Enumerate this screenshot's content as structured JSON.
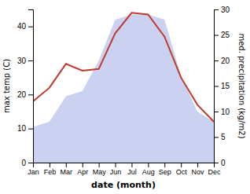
{
  "chart_data": {
    "type": "line",
    "categories": [
      "Jan",
      "Feb",
      "Mar",
      "Apr",
      "May",
      "Jun",
      "Jul",
      "Aug",
      "Sep",
      "Oct",
      "Nov",
      "Dec"
    ],
    "series": [
      {
        "type": "area",
        "axis": "y2",
        "color": "#c5cdf0",
        "values": [
          7.0,
          8.0,
          13.0,
          14.0,
          20.0,
          28.0,
          29.0,
          29.0,
          28.0,
          17.0,
          10.0,
          8.0
        ]
      },
      {
        "type": "line",
        "color": "#c0392b",
        "values": [
          18.0,
          22.0,
          29.0,
          27.0,
          27.5,
          38.0,
          44.0,
          43.5,
          37.0,
          25.0,
          17.0,
          12.0
        ]
      }
    ],
    "xlabel": "date (month)",
    "ylabel": "max temp (C)",
    "y2label": "med. precipitation (kg/m2)",
    "ylim": [
      0,
      45
    ],
    "yticks": [
      0,
      10,
      20,
      30,
      40
    ],
    "y2lim": [
      0,
      30
    ],
    "y2ticks": [
      0,
      5,
      10,
      15,
      20,
      25,
      30
    ]
  }
}
